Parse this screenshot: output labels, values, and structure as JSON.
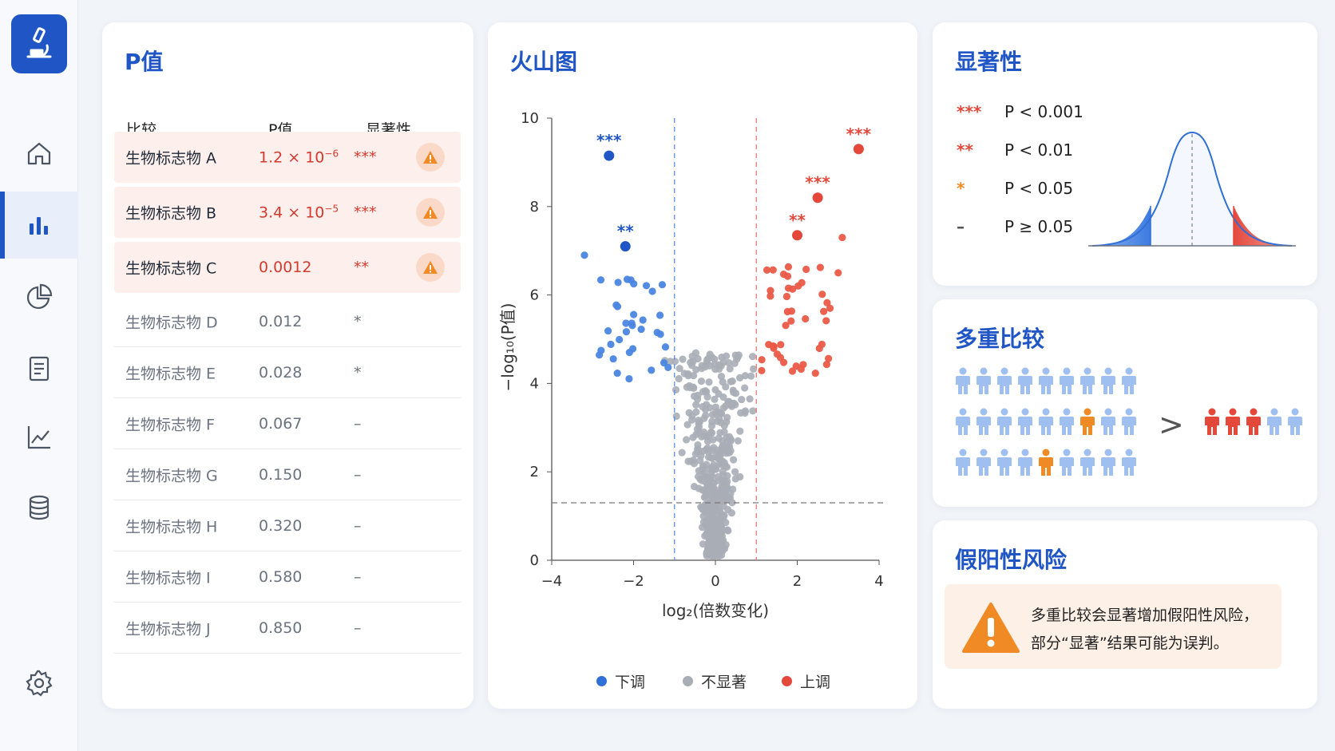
{
  "sidebar": {
    "items": [
      {
        "name": "home",
        "icon": "home-icon"
      },
      {
        "name": "analysis",
        "icon": "bar-chart-icon",
        "active": true
      },
      {
        "name": "pie",
        "icon": "pie-chart-icon"
      },
      {
        "name": "report",
        "icon": "document-icon"
      },
      {
        "name": "trend",
        "icon": "line-chart-icon"
      },
      {
        "name": "database",
        "icon": "database-icon"
      },
      {
        "name": "settings",
        "icon": "gear-icon"
      }
    ]
  },
  "pvalue_card": {
    "title": "P值",
    "headers": [
      "比较",
      "P值",
      "显著性"
    ],
    "rows": [
      {
        "name": "生物标志物 A",
        "p_base": "1.2 × 10",
        "p_exp": "−6",
        "stars": "***",
        "significant": true
      },
      {
        "name": "生物标志物 B",
        "p_base": "3.4 × 10",
        "p_exp": "−5",
        "stars": "***",
        "significant": true
      },
      {
        "name": "生物标志物 C",
        "p_base": "0.0012",
        "p_exp": "",
        "stars": "**",
        "significant": true
      },
      {
        "name": "生物标志物 D",
        "p_base": "0.012",
        "p_exp": "",
        "stars": "*",
        "significant": false
      },
      {
        "name": "生物标志物 E",
        "p_base": "0.028",
        "p_exp": "",
        "stars": "*",
        "significant": false
      },
      {
        "name": "生物标志物 F",
        "p_base": "0.067",
        "p_exp": "",
        "stars": "–",
        "significant": false
      },
      {
        "name": "生物标志物 G",
        "p_base": "0.150",
        "p_exp": "",
        "stars": "–",
        "significant": false
      },
      {
        "name": "生物标志物 H",
        "p_base": "0.320",
        "p_exp": "",
        "stars": "–",
        "significant": false
      },
      {
        "name": "生物标志物 I",
        "p_base": "0.580",
        "p_exp": "",
        "stars": "–",
        "significant": false
      },
      {
        "name": "生物标志物 J",
        "p_base": "0.850",
        "p_exp": "",
        "stars": "–",
        "significant": false
      }
    ]
  },
  "volcano_card": {
    "title": "火山图",
    "legend": {
      "down": "下调",
      "ns": "不显著",
      "up": "上调"
    }
  },
  "chart_data": {
    "type": "scatter",
    "title": "火山图",
    "xlabel": "log₂(倍数变化)",
    "ylabel": "−log₁₀(P值)",
    "xlim": [
      -4,
      4
    ],
    "ylim": [
      0,
      10
    ],
    "xticks": [
      "−4",
      "−2",
      "0",
      "2",
      "4"
    ],
    "yticks": [
      "0",
      "2",
      "4",
      "6",
      "8",
      "10"
    ],
    "thresholds": {
      "fc": [
        -1,
        1
      ],
      "p": 1.3
    },
    "labeled_points": [
      {
        "x": -2.6,
        "y": 9.15,
        "label": "***",
        "group": "down"
      },
      {
        "x": -2.2,
        "y": 7.1,
        "label": "**",
        "group": "down"
      },
      {
        "x": 3.5,
        "y": 9.3,
        "label": "***",
        "group": "up"
      },
      {
        "x": 2.5,
        "y": 8.2,
        "label": "***",
        "group": "up"
      },
      {
        "x": 2.0,
        "y": 7.35,
        "label": "**",
        "group": "up"
      }
    ],
    "series": [
      {
        "name": "下调",
        "color": "#2f6fd6"
      },
      {
        "name": "不显著",
        "color": "#a8adb6"
      },
      {
        "name": "上调",
        "color": "#e3483b"
      }
    ]
  },
  "significance_card": {
    "title": "显著性",
    "levels": [
      {
        "stars": "***",
        "text": "P < 0.001",
        "color": "#e3483b"
      },
      {
        "stars": "**",
        "text": "P < 0.01",
        "color": "#e3483b"
      },
      {
        "stars": "*",
        "text": "P < 0.05",
        "color": "#f08a24"
      },
      {
        "stars": "–",
        "text": "P ≥ 0.05",
        "color": "#555555"
      }
    ]
  },
  "multiple_card": {
    "title": "多重比较",
    "arrow": ">"
  },
  "fp_card": {
    "title": "假阳性风险",
    "line1": "多重比较会显著增加假阳性风险，",
    "line2": "部分“显著”结果可能为误判。"
  },
  "colors": {
    "primary": "#1f55c4",
    "down": "#2f6fd6",
    "up": "#e3483b",
    "warning": "#f08a24"
  }
}
